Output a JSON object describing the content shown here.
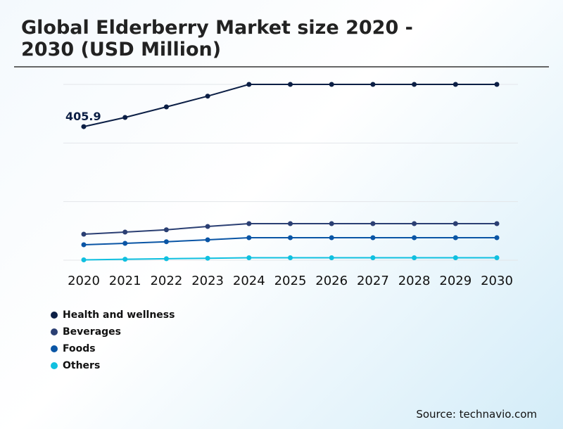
{
  "chart_data": {
    "type": "line",
    "title": "Global Elderberry Market size 2020 - 2030 (USD Million)",
    "x": [
      "2020",
      "2021",
      "2022",
      "2023",
      "2024",
      "2025",
      "2026",
      "2027",
      "2028",
      "2029",
      "2030"
    ],
    "ylim": [
      0,
      534.3
    ],
    "grid": true,
    "legend_placement": "bottom-left",
    "annotation": "405.9",
    "series": [
      {
        "name": "Health and wellness",
        "color": "#0c1f45",
        "values": [
          405.9,
          433.8,
          465.9,
          498.6,
          534.3,
          534.3,
          534.3,
          534.3,
          534.3,
          534.3,
          534.3
        ]
      },
      {
        "name": "Beverages",
        "color": "#2b3f73",
        "values": [
          79.1,
          85.5,
          92.5,
          102.6,
          111.1,
          111.1,
          111.1,
          111.1,
          111.1,
          111.1,
          111.1
        ]
      },
      {
        "name": "Foods",
        "color": "#0a55a5",
        "values": [
          47.0,
          51.3,
          56.2,
          62.0,
          68.4,
          68.4,
          68.4,
          68.4,
          68.4,
          68.4,
          68.4
        ]
      },
      {
        "name": "Others",
        "color": "#10c0e0",
        "values": [
          1,
          3,
          4.5,
          6,
          7.5,
          7.5,
          7.5,
          7.5,
          7.5,
          7.5,
          7.5
        ]
      }
    ]
  },
  "source": "Source: technavio.com"
}
